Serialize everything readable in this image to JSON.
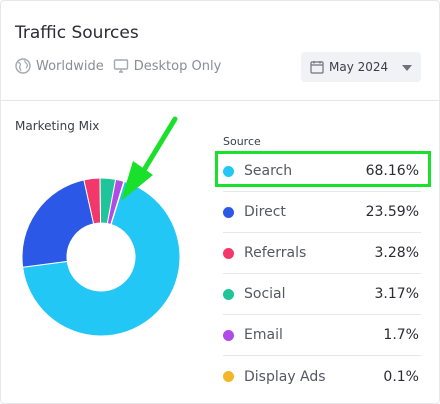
{
  "header": {
    "title": "Traffic Sources",
    "region": "Worldwide",
    "device": "Desktop Only",
    "date": "May 2024"
  },
  "chart": {
    "label": "Marketing Mix",
    "legend_title": "Source"
  },
  "chart_data": {
    "type": "pie",
    "categories": [
      "Search",
      "Direct",
      "Referrals",
      "Social",
      "Email",
      "Display Ads"
    ],
    "labels": [
      "68.16%",
      "23.59%",
      "3.28%",
      "3.17%",
      "1.7%",
      "0.1%"
    ],
    "values": [
      68.16,
      23.59,
      3.28,
      3.17,
      1.7,
      0.1
    ],
    "colors": [
      "#22c7f5",
      "#2b58e6",
      "#f2386b",
      "#1fc49b",
      "#b14be6",
      "#f2b62b"
    ],
    "style": "donut"
  },
  "annotation": {
    "highlight_color": "#19e02a",
    "highlighted": "Search"
  }
}
